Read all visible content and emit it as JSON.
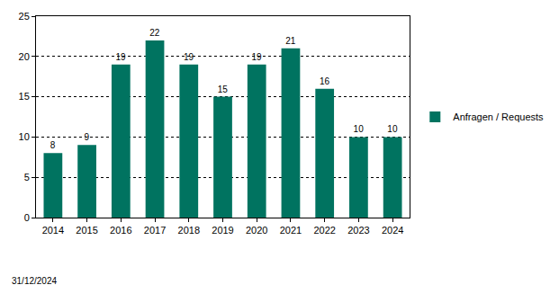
{
  "chart_data": {
    "type": "bar",
    "categories": [
      "2014",
      "2015",
      "2016",
      "2017",
      "2018",
      "2019",
      "2020",
      "2021",
      "2022",
      "2023",
      "2024"
    ],
    "series": [
      {
        "name": "Anfragen / Requests",
        "color": "#007360",
        "values": [
          8,
          9,
          19,
          22,
          19,
          15,
          19,
          21,
          16,
          10,
          10
        ]
      }
    ],
    "ylim": [
      0,
      25
    ],
    "yticks": [
      0,
      5,
      10,
      15,
      20,
      25
    ],
    "grid": true,
    "legend": "right",
    "data_labels": true,
    "annotations": [
      "31/12/2024"
    ]
  }
}
